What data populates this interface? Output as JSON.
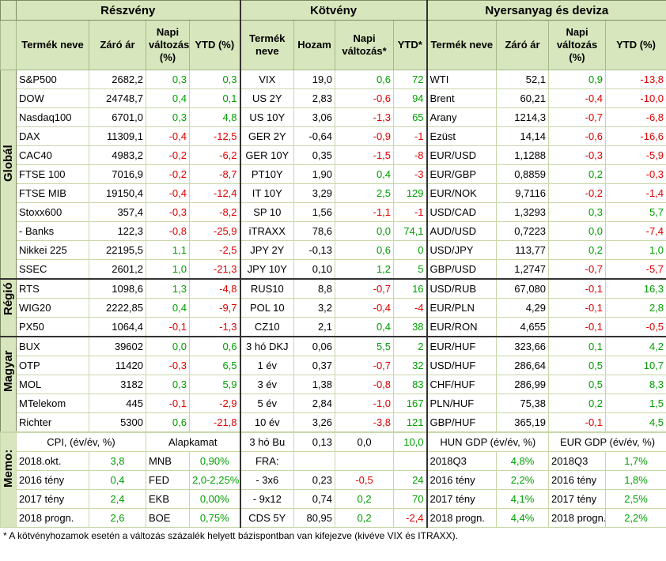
{
  "headers": {
    "g1": "Részvény",
    "g2": "Kötvény",
    "g3": "Nyersanyag és deviza",
    "stock_name": "Termék neve",
    "stock_close": "Záró ár",
    "stock_daily": "Napi változás (%)",
    "stock_ytd": "YTD (%)",
    "bond_name": "Termék neve",
    "bond_yield": "Hozam",
    "bond_daily": "Napi változás*",
    "bond_ytd": "YTD*",
    "fx_name": "Termék neve",
    "fx_close": "Záró ár",
    "fx_daily": "Napi változás (%)",
    "fx_ytd": "YTD (%)"
  },
  "sections": {
    "global": "Globál",
    "region": "Régió",
    "hungary": "Magyar",
    "memo": "Memo:"
  },
  "rows": [
    [
      "S&P500",
      "2682,2",
      "0,3",
      "0,3",
      "VIX",
      "19,0",
      "0,6",
      "72",
      "WTI",
      "52,1",
      "0,9",
      "-13,8"
    ],
    [
      "DOW",
      "24748,7",
      "0,4",
      "0,1",
      "US 2Y",
      "2,83",
      "-0,6",
      "94",
      "Brent",
      "60,21",
      "-0,4",
      "-10,0"
    ],
    [
      "Nasdaq100",
      "6701,0",
      "0,3",
      "4,8",
      "US 10Y",
      "3,06",
      "-1,3",
      "65",
      "Arany",
      "1214,3",
      "-0,7",
      "-6,8"
    ],
    [
      "DAX",
      "11309,1",
      "-0,4",
      "-12,5",
      "GER 2Y",
      "-0,64",
      "-0,9",
      "-1",
      "Ezüst",
      "14,14",
      "-0,6",
      "-16,6"
    ],
    [
      "CAC40",
      "4983,2",
      "-0,2",
      "-6,2",
      "GER 10Y",
      "0,35",
      "-1,5",
      "-8",
      "EUR/USD",
      "1,1288",
      "-0,3",
      "-5,9"
    ],
    [
      "FTSE 100",
      "7016,9",
      "-0,2",
      "-8,7",
      "PT10Y",
      "1,90",
      "0,4",
      "-3",
      "EUR/GBP",
      "0,8859",
      "0,2",
      "-0,3"
    ],
    [
      "FTSE MIB",
      "19150,4",
      "-0,4",
      "-12,4",
      "IT 10Y",
      "3,29",
      "2,5",
      "129",
      "EUR/NOK",
      "9,7116",
      "-0,2",
      "-1,4"
    ],
    [
      "Stoxx600",
      "357,4",
      "-0,3",
      "-8,2",
      "SP 10",
      "1,56",
      "-1,1",
      "-1",
      "USD/CAD",
      "1,3293",
      "0,3",
      "5,7"
    ],
    [
      "- Banks",
      "122,3",
      "-0,8",
      "-25,9",
      "iTRAXX",
      "78,6",
      "0,0",
      "74,1",
      "AUD/USD",
      "0,7223",
      "0,0",
      "-7,4"
    ],
    [
      "Nikkei 225",
      "22195,5",
      "1,1",
      "-2,5",
      "JPY 2Y",
      "-0,13",
      "0,6",
      "0",
      "USD/JPY",
      "113,77",
      "0,2",
      "1,0"
    ],
    [
      "SSEC",
      "2601,2",
      "1,0",
      "-21,3",
      "JPY 10Y",
      "0,10",
      "1,2",
      "5",
      "GBP/USD",
      "1,2747",
      "-0,7",
      "-5,7"
    ],
    [
      "RTS",
      "1098,6",
      "1,3",
      "-4,8",
      "RUS10",
      "8,8",
      "-0,7",
      "16",
      "USD/RUB",
      "67,080",
      "-0,1",
      "16,3"
    ],
    [
      "WIG20",
      "2222,85",
      "0,4",
      "-9,7",
      "POL 10",
      "3,2",
      "-0,4",
      "-4",
      "EUR/PLN",
      "4,29",
      "-0,1",
      "2,8"
    ],
    [
      "PX50",
      "1064,4",
      "-0,1",
      "-1,3",
      "CZ10",
      "2,1",
      "0,4",
      "38",
      "EUR/RON",
      "4,655",
      "-0,1",
      "-0,5"
    ],
    [
      "BUX",
      "39602",
      "0,0",
      "0,6",
      "3 hó DKJ",
      "0,06",
      "5,5",
      "2",
      "EUR/HUF",
      "323,66",
      "0,1",
      "4,2"
    ],
    [
      "OTP",
      "11420",
      "-0,3",
      "6,5",
      "1 év",
      "0,37",
      "-0,7",
      "32",
      "USD/HUF",
      "286,64",
      "0,5",
      "10,7"
    ],
    [
      "MOL",
      "3182",
      "0,3",
      "5,9",
      "3 év",
      "1,38",
      "-0,8",
      "83",
      "CHF/HUF",
      "286,99",
      "0,5",
      "8,3"
    ],
    [
      "MTelekom",
      "445",
      "-0,1",
      "-2,9",
      "5 év",
      "2,84",
      "-1,0",
      "167",
      "PLN/HUF",
      "75,38",
      "0,2",
      "1,5"
    ],
    [
      "Richter",
      "5300",
      "0,6",
      "-21,8",
      "10 év",
      "3,26",
      "-3,8",
      "121",
      "GBP/HUF",
      "365,19",
      "-0,1",
      "4,5"
    ]
  ],
  "memo": {
    "cpi_title": "CPI, (év/év, %)",
    "rate_title": "Alapkamat",
    "bu_label": "3 hó Bu",
    "bu_yield": "0,13",
    "bu_daily": "0,0",
    "bu_ytd": "10,0",
    "hun_gdp_title": "HUN GDP (év/év, %)",
    "eur_gdp_title": "EUR GDP (év/év, %)",
    "rows": [
      {
        "cpi_label": "2018.okt.",
        "cpi_val": "3,8",
        "rate_label": "MNB",
        "rate_val": "0,90%",
        "b_label": "FRA:",
        "b_yield": "",
        "b_daily": "",
        "b_ytd": "",
        "hun_label": "2018Q3",
        "hun_val": "4,8%",
        "eur_label": "2018Q3",
        "eur_val": "1,7%"
      },
      {
        "cpi_label": "2016 tény",
        "cpi_val": "0,4",
        "rate_label": "FED",
        "rate_val": "2,0-2,25%",
        "b_label": "- 3x6",
        "b_yield": "0,23",
        "b_daily": "-0,5",
        "b_ytd": "24",
        "hun_label": "2016 tény",
        "hun_val": "2,2%",
        "eur_label": "2016 tény",
        "eur_val": "1,8%"
      },
      {
        "cpi_label": "2017 tény",
        "cpi_val": "2,4",
        "rate_label": "EKB",
        "rate_val": "0,00%",
        "b_label": "- 9x12",
        "b_yield": "0,74",
        "b_daily": "0,2",
        "b_ytd": "70",
        "hun_label": "2017 tény",
        "hun_val": "4,1%",
        "eur_label": "2017 tény",
        "eur_val": "2,5%"
      },
      {
        "cpi_label": "2018 progn.",
        "cpi_val": "2,6",
        "rate_label": "BOE",
        "rate_val": "0,75%",
        "b_label": "CDS 5Y",
        "b_yield": "80,95",
        "b_daily": "0,2",
        "b_ytd": "-2,4",
        "hun_label": "2018 progn.",
        "hun_val": "4,4%",
        "eur_label": "2018 progn.",
        "eur_val": "2,2%"
      }
    ]
  },
  "footnote": "* A kötvényhozamok esetén a változás százalék helyett bázispontban van kifejezve (kivéve VIX és ITRAXX)."
}
